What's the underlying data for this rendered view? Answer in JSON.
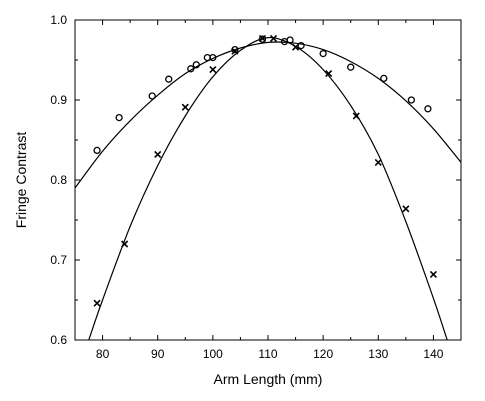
{
  "chart_data": {
    "type": "scatter",
    "xlabel": "Arm Length (mm)",
    "ylabel": "Fringe Contrast",
    "xlim": [
      75,
      145
    ],
    "ylim": [
      0.6,
      1.0
    ],
    "xticks": [
      80,
      90,
      100,
      110,
      120,
      130,
      140
    ],
    "xtick_labels": [
      "80",
      "90",
      "100",
      "110",
      "120",
      "130",
      "140"
    ],
    "yticks": [
      0.6,
      0.7,
      0.8,
      0.9,
      1.0
    ],
    "ytick_labels": [
      "0.6",
      "0.7",
      "0.8",
      "0.9",
      "1.0"
    ],
    "grid": false,
    "legend": "none",
    "series": [
      {
        "marker": "circle",
        "points": [
          [
            79,
            0.837
          ],
          [
            83,
            0.878
          ],
          [
            89,
            0.905
          ],
          [
            92,
            0.926
          ],
          [
            96,
            0.939
          ],
          [
            97,
            0.944
          ],
          [
            99,
            0.953
          ],
          [
            100,
            0.953
          ],
          [
            104,
            0.963
          ],
          [
            109,
            0.976
          ],
          [
            113,
            0.973
          ],
          [
            114,
            0.975
          ],
          [
            116,
            0.968
          ],
          [
            120,
            0.958
          ],
          [
            125,
            0.941
          ],
          [
            131,
            0.927
          ],
          [
            136,
            0.9
          ],
          [
            139,
            0.889
          ]
        ],
        "fit_curve": {
          "points": [
            [
              75,
              0.79
            ],
            [
              80,
              0.836
            ],
            [
              85,
              0.874
            ],
            [
              90,
              0.906
            ],
            [
              95,
              0.933
            ],
            [
              100,
              0.952
            ],
            [
              105,
              0.965
            ],
            [
              110,
              0.972
            ],
            [
              115,
              0.971
            ],
            [
              120,
              0.963
            ],
            [
              125,
              0.948
            ],
            [
              130,
              0.927
            ],
            [
              135,
              0.899
            ],
            [
              140,
              0.864
            ],
            [
              145,
              0.822
            ]
          ]
        }
      },
      {
        "marker": "cross",
        "points": [
          [
            79,
            0.646
          ],
          [
            84,
            0.72
          ],
          [
            90,
            0.832
          ],
          [
            95,
            0.891
          ],
          [
            100,
            0.938
          ],
          [
            104,
            0.961
          ],
          [
            109,
            0.977
          ],
          [
            111,
            0.977
          ],
          [
            115,
            0.966
          ],
          [
            121,
            0.933
          ],
          [
            126,
            0.88
          ],
          [
            130,
            0.822
          ],
          [
            135,
            0.764
          ],
          [
            140,
            0.682
          ]
        ],
        "fit_curve": {
          "points": [
            [
              77.5,
              0.6
            ],
            [
              80,
              0.65
            ],
            [
              85,
              0.742
            ],
            [
              90,
              0.818
            ],
            [
              95,
              0.88
            ],
            [
              100,
              0.929
            ],
            [
              105,
              0.962
            ],
            [
              110,
              0.978
            ],
            [
              115,
              0.967
            ],
            [
              120,
              0.938
            ],
            [
              125,
              0.893
            ],
            [
              130,
              0.832
            ],
            [
              135,
              0.748
            ],
            [
              140,
              0.652
            ],
            [
              142.5,
              0.6
            ]
          ]
        }
      }
    ]
  }
}
